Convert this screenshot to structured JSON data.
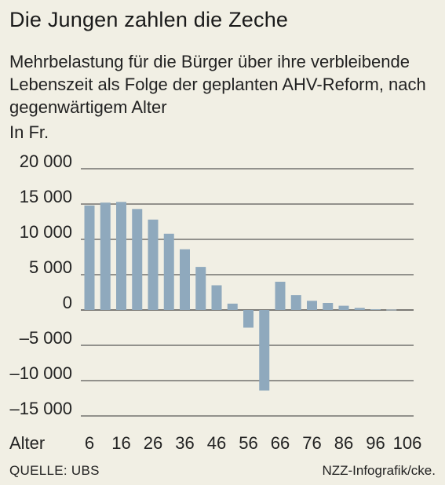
{
  "chart": {
    "title": "Die Jungen zahlen die Zeche",
    "subtitle": "Mehrbelastung für die Bürger über ihre verbleibende Lebenszeit als Folge der geplanten AHV-Reform, nach gegenwärtigem Alter",
    "unit": "In Fr.",
    "x_axis_label": "Alter",
    "source": "QUELLE: UBS",
    "credit": "NZZ-Infografik/cke."
  },
  "colors": {
    "bar": "#8fa9bd",
    "background": "#f1efe4",
    "gridline": "#333333"
  },
  "chart_data": {
    "type": "bar",
    "title": "Die Jungen zahlen die Zeche",
    "subtitle": "Mehrbelastung für die Bürger über ihre verbleibende Lebenszeit als Folge der geplanten AHV-Reform, nach gegenwärtigem Alter",
    "xlabel": "Alter",
    "ylabel": "In Fr.",
    "ylim": [
      -15000,
      20000
    ],
    "yticks": [
      20000,
      15000,
      10000,
      5000,
      0,
      -5000,
      -10000,
      -15000
    ],
    "ytick_labels": [
      "20 000",
      "15 000",
      "10 000",
      "5 000",
      "0",
      "–5 000",
      "–10 000",
      "–15 000"
    ],
    "xticks": [
      6,
      16,
      26,
      36,
      46,
      56,
      66,
      76,
      86,
      96,
      106
    ],
    "xtick_labels": [
      "6",
      "16",
      "26",
      "36",
      "46",
      "56",
      "66",
      "76",
      "86",
      "96",
      "106"
    ],
    "x": [
      6,
      11,
      16,
      21,
      26,
      31,
      36,
      41,
      46,
      51,
      56,
      61,
      66,
      71,
      76,
      81,
      86,
      91,
      96,
      101
    ],
    "values": [
      14800,
      15200,
      15300,
      14300,
      12800,
      10800,
      8600,
      6100,
      3500,
      900,
      -2500,
      -11400,
      4000,
      2100,
      1300,
      1000,
      600,
      300,
      100,
      50
    ],
    "grid": true,
    "gridlines_at": [
      20000,
      15000,
      10000,
      5000,
      0,
      -5000,
      -10000,
      -15000
    ]
  }
}
